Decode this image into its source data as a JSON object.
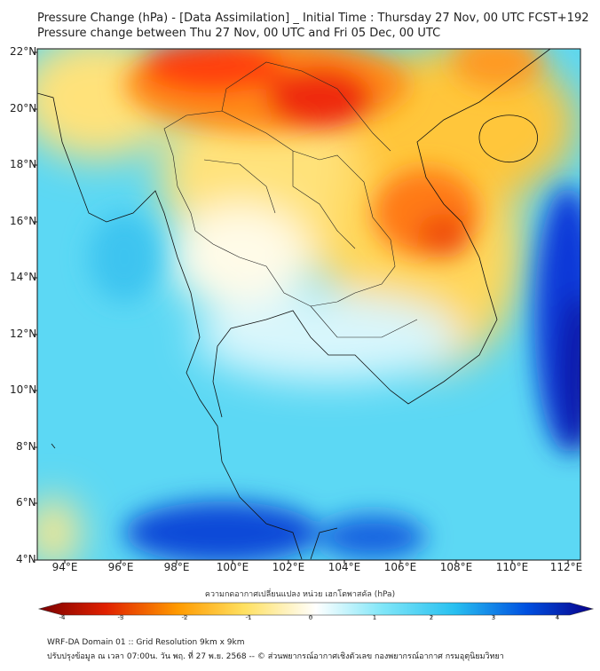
{
  "header": {
    "title_line1": "Pressure Change (hPa) - [Data Assimilation] _ Initial Time : Thursday 27 Nov, 00 UTC FCST+192",
    "title_line2": "Pressure change between Thu 27 Nov, 00 UTC and Fri 05 Dec, 00 UTC"
  },
  "map": {
    "lat_labels": [
      "22°N",
      "20°N",
      "18°N",
      "16°N",
      "14°N",
      "12°N",
      "10°N",
      "8°N",
      "6°N",
      "4°N"
    ],
    "lon_labels": [
      "94°E",
      "96°E",
      "98°E",
      "100°E",
      "102°E",
      "104°E",
      "106°E",
      "108°E",
      "110°E",
      "112°E"
    ]
  },
  "colorbar": {
    "title": "ความกดอากาศเปลี่ยนแปลง หน่วย เฮกโตพาสคัล (hPa)",
    "ticks": [
      "-4",
      "-3",
      "-2",
      "-1",
      "0",
      "1",
      "2",
      "3",
      "4"
    ],
    "colors": [
      "#7a0000",
      "#e02000",
      "#ff9a00",
      "#ffe060",
      "#ffffff",
      "#80e6f8",
      "#28c0f0",
      "#0050e0",
      "#08008a"
    ]
  },
  "footer": {
    "line1": "WRF-DA Domain 01 :: Grid Resolution 9km x 9km",
    "line2": "ปรับปรุงข้อมูล ณ เวลา 07:00น. วัน พฤ. ที่ 27 พ.ย. 2568 -- © ส่วนพยากรณ์อากาศเชิงตัวเลข กองพยากรณ์อากาศ กรมอุตุนิยมวิทยา"
  }
}
